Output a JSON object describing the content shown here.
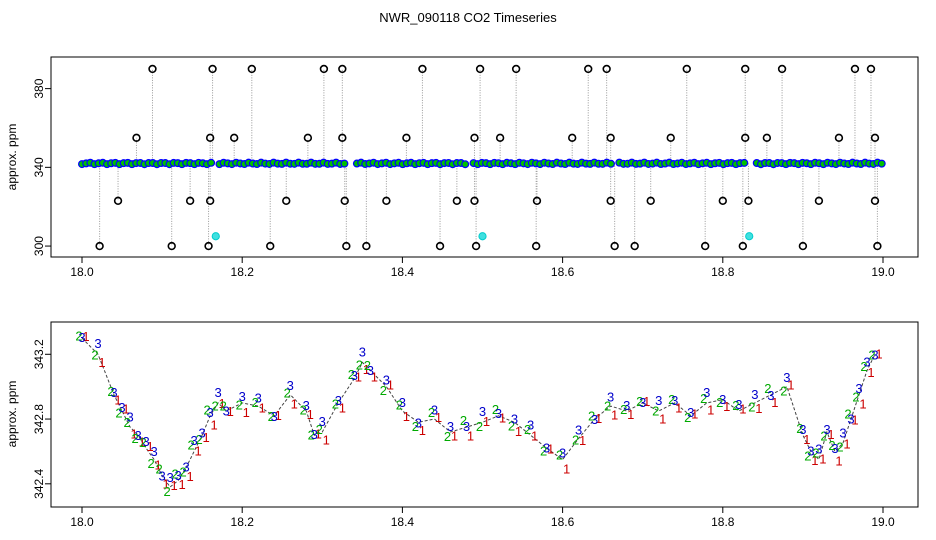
{
  "chart_data": [
    {
      "type": "scatter",
      "title": "NWR_090118  CO2 Timeseries",
      "xlabel": "",
      "ylabel": "approx. ppm",
      "xlim": [
        18.0,
        19.0
      ],
      "ylim": [
        298,
        392
      ],
      "x_ticks": [
        "18.0",
        "18.2",
        "18.4",
        "18.6",
        "18.8",
        "19.0"
      ],
      "y_ticks": [
        "300",
        "340",
        "380"
      ],
      "base_value": 342,
      "baseline_gaps": [
        18.168,
        18.335,
        18.485,
        18.665,
        18.835
      ],
      "series": [
        {
          "name": "baseline",
          "color": "#0000ff",
          "fill": "#00c000"
        },
        {
          "name": "spike",
          "color": "#000000",
          "points": [
            [
              18.088,
              390
            ],
            [
              18.163,
              390
            ],
            [
              18.212,
              390
            ],
            [
              18.302,
              390
            ],
            [
              18.325,
              390
            ],
            [
              18.425,
              390
            ],
            [
              18.497,
              390
            ],
            [
              18.542,
              390
            ],
            [
              18.632,
              390
            ],
            [
              18.655,
              390
            ],
            [
              18.755,
              390
            ],
            [
              18.828,
              390
            ],
            [
              18.874,
              390
            ],
            [
              18.965,
              390
            ],
            [
              18.985,
              390
            ],
            [
              18.068,
              355
            ],
            [
              18.16,
              355
            ],
            [
              18.19,
              355
            ],
            [
              18.282,
              355
            ],
            [
              18.325,
              355
            ],
            [
              18.405,
              355
            ],
            [
              18.49,
              355
            ],
            [
              18.522,
              355
            ],
            [
              18.612,
              355
            ],
            [
              18.66,
              355
            ],
            [
              18.735,
              355
            ],
            [
              18.828,
              355
            ],
            [
              18.855,
              355
            ],
            [
              18.945,
              355
            ],
            [
              18.99,
              355
            ],
            [
              18.045,
              323
            ],
            [
              18.135,
              323
            ],
            [
              18.16,
              323
            ],
            [
              18.255,
              323
            ],
            [
              18.328,
              323
            ],
            [
              18.38,
              323
            ],
            [
              18.468,
              323
            ],
            [
              18.49,
              323
            ],
            [
              18.568,
              323
            ],
            [
              18.66,
              323
            ],
            [
              18.71,
              323
            ],
            [
              18.8,
              323
            ],
            [
              18.832,
              323
            ],
            [
              18.92,
              323
            ],
            [
              18.99,
              323
            ],
            [
              18.022,
              300
            ],
            [
              18.112,
              300
            ],
            [
              18.158,
              300
            ],
            [
              18.235,
              300
            ],
            [
              18.33,
              300
            ],
            [
              18.355,
              300
            ],
            [
              18.447,
              300
            ],
            [
              18.492,
              300
            ],
            [
              18.567,
              300
            ],
            [
              18.665,
              300
            ],
            [
              18.69,
              300
            ],
            [
              18.778,
              300
            ],
            [
              18.825,
              300
            ],
            [
              18.9,
              300
            ],
            [
              18.993,
              300
            ]
          ]
        },
        {
          "name": "flagged",
          "color": "#00e0e0",
          "points": [
            [
              18.167,
              305
            ],
            [
              18.5,
              305
            ],
            [
              18.833,
              305
            ]
          ]
        }
      ]
    },
    {
      "type": "line",
      "title": "",
      "xlabel": "",
      "ylabel": "approx. ppm",
      "xlim": [
        18.0,
        19.0
      ],
      "ylim": [
        342.3,
        343.35
      ],
      "x_ticks": [
        "18.0",
        "18.2",
        "18.4",
        "18.6",
        "18.8",
        "19.0"
      ],
      "y_ticks": [
        "342.4",
        "342.8",
        "343.2"
      ],
      "marker_labels": [
        "1",
        "2",
        "3"
      ],
      "series": [
        {
          "name": "1",
          "color": "#cc0000"
        },
        {
          "name": "2",
          "color": "#00aa00"
        },
        {
          "name": "3",
          "color": "#0000cc"
        }
      ],
      "x": [
        18.0,
        18.02,
        18.04,
        18.05,
        18.06,
        18.07,
        18.08,
        18.09,
        18.1,
        18.11,
        18.12,
        18.13,
        18.14,
        18.15,
        18.16,
        18.17,
        18.18,
        18.2,
        18.22,
        18.24,
        18.26,
        18.28,
        18.29,
        18.3,
        18.32,
        18.34,
        18.35,
        18.36,
        18.38,
        18.4,
        18.42,
        18.44,
        18.46,
        18.48,
        18.5,
        18.52,
        18.54,
        18.56,
        18.58,
        18.6,
        18.62,
        18.64,
        18.66,
        18.68,
        18.7,
        18.72,
        18.74,
        18.76,
        18.78,
        18.8,
        18.82,
        18.84,
        18.86,
        18.88,
        18.9,
        18.91,
        18.92,
        18.93,
        18.94,
        18.95,
        18.96,
        18.97,
        18.98,
        18.99
      ],
      "values": [
        343.3,
        343.2,
        342.95,
        342.85,
        342.75,
        342.7,
        342.62,
        342.55,
        342.45,
        342.38,
        342.42,
        342.5,
        342.6,
        342.7,
        342.82,
        342.9,
        342.85,
        342.9,
        342.88,
        342.82,
        342.95,
        342.85,
        342.7,
        342.72,
        342.9,
        343.05,
        343.15,
        343.1,
        343.0,
        342.85,
        342.78,
        342.8,
        342.72,
        342.75,
        342.78,
        342.82,
        342.78,
        342.7,
        342.62,
        342.55,
        342.68,
        342.8,
        342.88,
        342.85,
        342.9,
        342.85,
        342.9,
        342.82,
        342.9,
        342.92,
        342.85,
        342.9,
        342.95,
        343.0,
        342.7,
        342.6,
        342.55,
        342.72,
        342.6,
        342.65,
        342.8,
        342.95,
        343.1,
        343.2
      ]
    }
  ]
}
